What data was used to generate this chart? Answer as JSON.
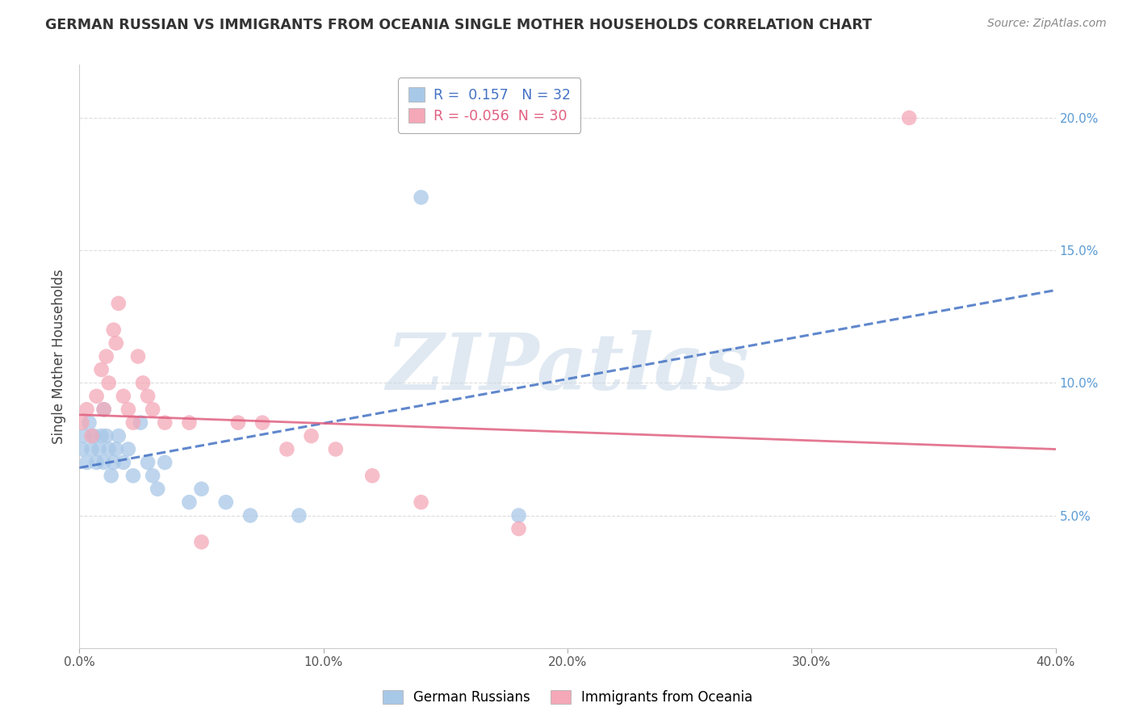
{
  "title": "GERMAN RUSSIAN VS IMMIGRANTS FROM OCEANIA SINGLE MOTHER HOUSEHOLDS CORRELATION CHART",
  "source": "Source: ZipAtlas.com",
  "ylabel": "Single Mother Households",
  "watermark": "ZIPatlas",
  "series1_name": "German Russians",
  "series1_color": "#a8c8e8",
  "series1_R": 0.157,
  "series1_N": 32,
  "series2_name": "Immigrants from Oceania",
  "series2_color": "#f4a8b8",
  "series2_R": -0.056,
  "series2_N": 30,
  "series1_x": [
    0.1,
    0.2,
    0.3,
    0.4,
    0.5,
    0.6,
    0.7,
    0.8,
    0.9,
    1.0,
    1.0,
    1.1,
    1.2,
    1.3,
    1.4,
    1.5,
    1.6,
    1.8,
    2.0,
    2.2,
    2.5,
    2.8,
    3.0,
    3.2,
    3.5,
    4.5,
    5.0,
    6.0,
    7.0,
    9.0,
    14.0,
    18.0
  ],
  "series1_y": [
    7.5,
    8.0,
    7.0,
    8.5,
    7.5,
    8.0,
    7.0,
    7.5,
    8.0,
    7.0,
    9.0,
    8.0,
    7.5,
    6.5,
    7.0,
    7.5,
    8.0,
    7.0,
    7.5,
    6.5,
    8.5,
    7.0,
    6.5,
    6.0,
    7.0,
    5.5,
    6.0,
    5.5,
    5.0,
    5.0,
    17.0,
    5.0
  ],
  "series2_x": [
    0.1,
    0.3,
    0.5,
    0.7,
    0.9,
    1.0,
    1.1,
    1.2,
    1.4,
    1.5,
    1.6,
    1.8,
    2.0,
    2.2,
    2.4,
    2.6,
    2.8,
    3.0,
    3.5,
    4.5,
    5.0,
    6.5,
    7.5,
    8.5,
    9.5,
    10.5,
    12.0,
    14.0,
    18.0,
    34.0
  ],
  "series2_y": [
    8.5,
    9.0,
    8.0,
    9.5,
    10.5,
    9.0,
    11.0,
    10.0,
    12.0,
    11.5,
    13.0,
    9.5,
    9.0,
    8.5,
    11.0,
    10.0,
    9.5,
    9.0,
    8.5,
    8.5,
    4.0,
    8.5,
    8.5,
    7.5,
    8.0,
    7.5,
    6.5,
    5.5,
    4.5,
    20.0
  ],
  "xmin": 0.0,
  "xmax": 40.0,
  "ymin": 0.0,
  "ymax": 22.0,
  "yticks": [
    5.0,
    10.0,
    15.0,
    20.0
  ],
  "ytick_labels": [
    "5.0%",
    "10.0%",
    "15.0%",
    "20.0%"
  ],
  "xticks": [
    0,
    10,
    20,
    30,
    40
  ],
  "xtick_labels": [
    "0.0%",
    "10.0%",
    "20.0%",
    "30.0%",
    "40.0%"
  ],
  "background_color": "#ffffff",
  "grid_color": "#dddddd",
  "trend1_color": "#4472c4",
  "trend1_linestyle": "--",
  "trend2_color": "#e06080",
  "trend2_linestyle": "-",
  "trend1_start_y": 6.8,
  "trend1_end_y": 13.5,
  "trend2_start_y": 8.8,
  "trend2_end_y": 7.5
}
